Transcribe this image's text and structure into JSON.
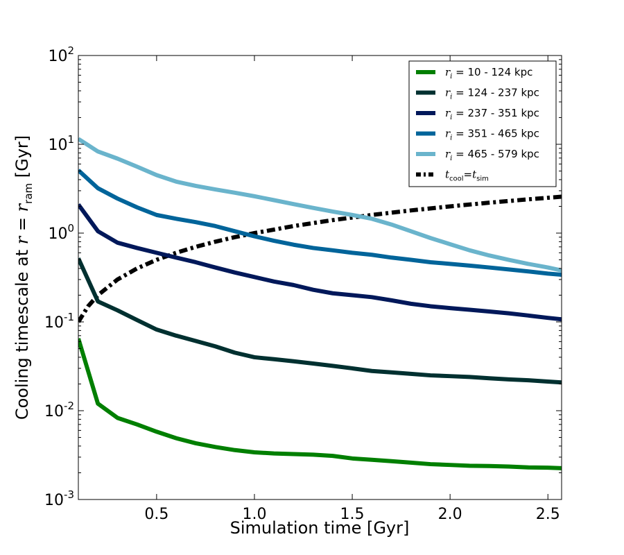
{
  "chart_data": {
    "type": "line",
    "title": "",
    "xlabel": "Simulation time [Gyr]",
    "ylabel": {
      "prefix": "Cooling timescale at ",
      "math_r": "r",
      "eq": " = ",
      "math_r2": "r",
      "sub": "ram",
      "suffix": " [Gyr]"
    },
    "xlim": [
      0.1,
      2.57
    ],
    "ylim": [
      0.001,
      100
    ],
    "yscale": "log",
    "x_ticks": [
      0.5,
      1.0,
      1.5,
      2.0,
      2.5
    ],
    "x_tick_labels": [
      "0.5",
      "1.0",
      "1.5",
      "2.0",
      "2.5"
    ],
    "y_ticks": [
      0.001,
      0.01,
      0.1,
      1,
      10,
      100
    ],
    "y_tick_labels": [
      {
        "base": "10",
        "exp": "-3"
      },
      {
        "base": "10",
        "exp": "-2"
      },
      {
        "base": "10",
        "exp": "-1"
      },
      {
        "base": "10",
        "exp": "0"
      },
      {
        "base": "10",
        "exp": "1"
      },
      {
        "base": "10",
        "exp": "2"
      }
    ],
    "legend_position": "top-right",
    "x": [
      0.1,
      0.2,
      0.3,
      0.4,
      0.5,
      0.6,
      0.7,
      0.8,
      0.9,
      1.0,
      1.1,
      1.2,
      1.3,
      1.4,
      1.5,
      1.6,
      1.7,
      1.8,
      1.9,
      2.0,
      2.1,
      2.2,
      2.3,
      2.4,
      2.5,
      2.57
    ],
    "series": [
      {
        "name_var": "r",
        "name_sub": "i",
        "name_text": " = 10 - 124 kpc",
        "color": "#007f00",
        "values": [
          0.065,
          0.012,
          0.0083,
          0.007,
          0.0058,
          0.0049,
          0.0043,
          0.0039,
          0.0036,
          0.0034,
          0.0033,
          0.00325,
          0.0032,
          0.0031,
          0.0029,
          0.0028,
          0.0027,
          0.0026,
          0.0025,
          0.00245,
          0.0024,
          0.00238,
          0.00235,
          0.0023,
          0.00228,
          0.00225
        ]
      },
      {
        "name_var": "r",
        "name_sub": "i",
        "name_text": " = 124 - 237 kpc",
        "color": "#003030",
        "values": [
          0.52,
          0.17,
          0.135,
          0.105,
          0.082,
          0.07,
          0.061,
          0.053,
          0.045,
          0.04,
          0.038,
          0.036,
          0.034,
          0.032,
          0.03,
          0.028,
          0.027,
          0.026,
          0.025,
          0.0245,
          0.024,
          0.0232,
          0.0225,
          0.022,
          0.0213,
          0.0208
        ]
      },
      {
        "name_var": "r",
        "name_sub": "i",
        "name_text": " = 237 - 351 kpc",
        "color": "#00185a",
        "values": [
          2.1,
          1.05,
          0.78,
          0.68,
          0.6,
          0.53,
          0.47,
          0.41,
          0.36,
          0.32,
          0.285,
          0.26,
          0.23,
          0.21,
          0.2,
          0.19,
          0.175,
          0.16,
          0.15,
          0.143,
          0.137,
          0.131,
          0.125,
          0.118,
          0.111,
          0.107
        ]
      },
      {
        "name_var": "r",
        "name_sub": "i",
        "name_text": " = 351 - 465 kpc",
        "color": "#00649a",
        "values": [
          5.1,
          3.2,
          2.45,
          1.95,
          1.6,
          1.45,
          1.33,
          1.2,
          1.05,
          0.92,
          0.82,
          0.74,
          0.68,
          0.64,
          0.6,
          0.57,
          0.53,
          0.5,
          0.47,
          0.45,
          0.43,
          0.41,
          0.39,
          0.37,
          0.35,
          0.34
        ]
      },
      {
        "name_var": "r",
        "name_sub": "i",
        "name_text": " = 465 - 579 kpc",
        "color": "#6ab4cc",
        "values": [
          11.5,
          8.3,
          6.9,
          5.6,
          4.5,
          3.8,
          3.4,
          3.1,
          2.85,
          2.6,
          2.35,
          2.12,
          1.92,
          1.75,
          1.6,
          1.45,
          1.25,
          1.05,
          0.88,
          0.75,
          0.64,
          0.56,
          0.5,
          0.45,
          0.41,
          0.38
        ]
      }
    ],
    "reference_line": {
      "name_t1": "t",
      "name_sub1": "cool",
      "name_eq": "=",
      "name_t2": "t",
      "name_sub2": "sim",
      "color": "#000000",
      "x": [
        0.1,
        0.15,
        0.2,
        0.3,
        0.4,
        0.5,
        0.6,
        0.7,
        0.8,
        0.9,
        1.0,
        1.2,
        1.4,
        1.6,
        1.8,
        2.0,
        2.2,
        2.4,
        2.57
      ],
      "values": [
        0.1,
        0.15,
        0.2,
        0.3,
        0.4,
        0.5,
        0.6,
        0.7,
        0.8,
        0.9,
        1.0,
        1.2,
        1.4,
        1.6,
        1.8,
        2.0,
        2.2,
        2.4,
        2.57
      ]
    }
  }
}
